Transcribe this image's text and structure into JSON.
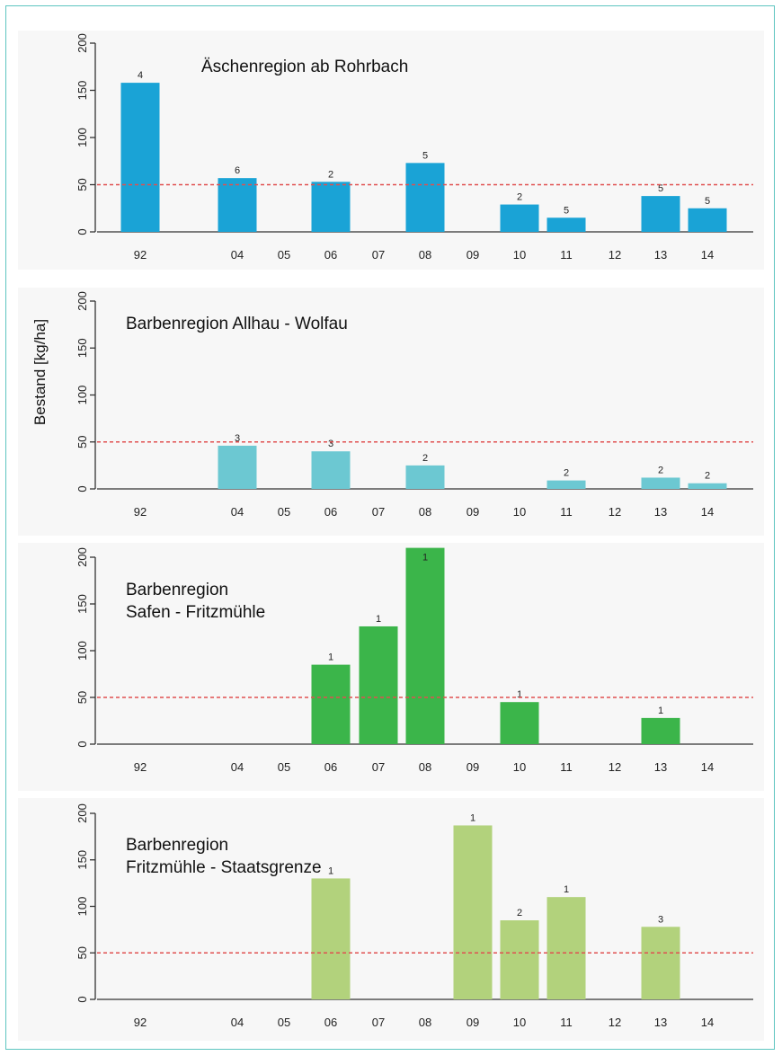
{
  "chart_data": {
    "type": "bar",
    "ylabel": "Bestand [kg/ha]",
    "ylim": [
      0,
      200
    ],
    "yticks": [
      0,
      50,
      100,
      150,
      200
    ],
    "reference_line": {
      "y": 50,
      "color": "#e05050"
    },
    "categories": [
      "92",
      "04",
      "05",
      "06",
      "07",
      "08",
      "09",
      "10",
      "11",
      "12",
      "13",
      "14"
    ],
    "grid": false,
    "panels": [
      {
        "title_lines": [
          "Äschenregion ab Rohrbach"
        ],
        "color": "#1aa3d6",
        "values": [
          158,
          57,
          null,
          53,
          null,
          73,
          null,
          29,
          15,
          null,
          38,
          25
        ],
        "bar_labels": [
          "4",
          "6",
          "",
          "2",
          "",
          "5",
          "",
          "2",
          "5",
          "",
          "5",
          "5"
        ]
      },
      {
        "title_lines": [
          "Barbenregion Allhau - Wolfau"
        ],
        "color": "#6cc8d2",
        "values": [
          null,
          46,
          null,
          40,
          null,
          25,
          null,
          null,
          9,
          null,
          12,
          6
        ],
        "bar_labels": [
          "",
          "3",
          "",
          "3",
          "",
          "2",
          "",
          "",
          "2",
          "",
          "2",
          "2"
        ]
      },
      {
        "title_lines": [
          "Barbenregion",
          "Safen - Fritzmühle"
        ],
        "color": "#3bb54a",
        "values": [
          null,
          null,
          null,
          85,
          126,
          210,
          null,
          45,
          null,
          null,
          28,
          null
        ],
        "bar_labels": [
          "",
          "",
          "",
          "1",
          "1",
          "1",
          "",
          "1",
          "",
          "",
          "1",
          ""
        ]
      },
      {
        "title_lines": [
          "Barbenregion",
          "Fritzmühle - Staatsgrenze"
        ],
        "color": "#b2d27c",
        "values": [
          null,
          null,
          null,
          130,
          null,
          null,
          187,
          85,
          110,
          null,
          78,
          null
        ],
        "bar_labels": [
          "",
          "",
          "",
          "1",
          "",
          "",
          "1",
          "2",
          "1",
          "",
          "3",
          ""
        ]
      }
    ]
  }
}
